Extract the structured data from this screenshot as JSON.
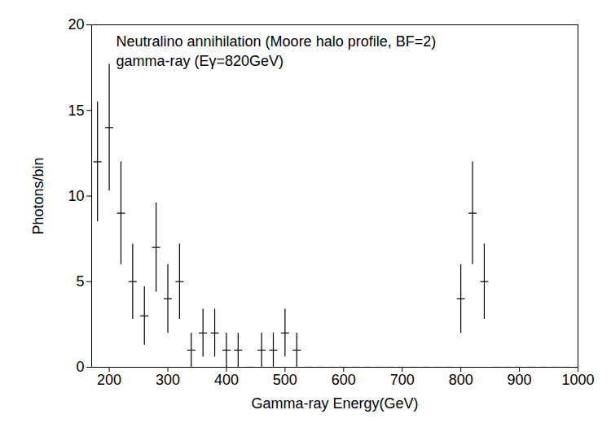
{
  "chart_data": {
    "type": "scatter",
    "title": "Neutralino annihilation (Moore halo profile, BF=2)",
    "annotation": "gamma-ray (Eγ=820GeV)",
    "x_label": "Gamma-ray Energy(GeV)",
    "y_label": "Photons/bin",
    "x": [
      180,
      200,
      220,
      240,
      260,
      280,
      300,
      320,
      340,
      360,
      380,
      400,
      420,
      440,
      460,
      480,
      500,
      520,
      540,
      560,
      580,
      600,
      620,
      640,
      660,
      680,
      700,
      720,
      740,
      760,
      780,
      800,
      820,
      840,
      860,
      880,
      900,
      920,
      940,
      960,
      980,
      1000
    ],
    "values": [
      12,
      14,
      9,
      5,
      3,
      7,
      4,
      5,
      1,
      2,
      2,
      1,
      1,
      0,
      1,
      1,
      2,
      1,
      0,
      0,
      0,
      0,
      0,
      0,
      0,
      0,
      0,
      0,
      0,
      0,
      0,
      4,
      9,
      5,
      0,
      0,
      0,
      0,
      0,
      0,
      0,
      0
    ],
    "errors": [
      3.5,
      3.7,
      3,
      2.2,
      1.7,
      2.6,
      2,
      2.2,
      1,
      1.4,
      1.4,
      1,
      1,
      0,
      1,
      1,
      1.4,
      1,
      0,
      0,
      0,
      0,
      0,
      0,
      0,
      0,
      0,
      0,
      0,
      0,
      0,
      2,
      3,
      2.2,
      0,
      0,
      0,
      0,
      0,
      0,
      0,
      0
    ],
    "xlim": [
      170,
      1000
    ],
    "xticks": [
      200,
      300,
      400,
      500,
      600,
      700,
      800,
      900,
      1000
    ],
    "ylim": [
      0,
      20
    ],
    "yticks": [
      0,
      5,
      10,
      15,
      20
    ],
    "color": "#000000",
    "marker": "hline",
    "grid": false
  }
}
